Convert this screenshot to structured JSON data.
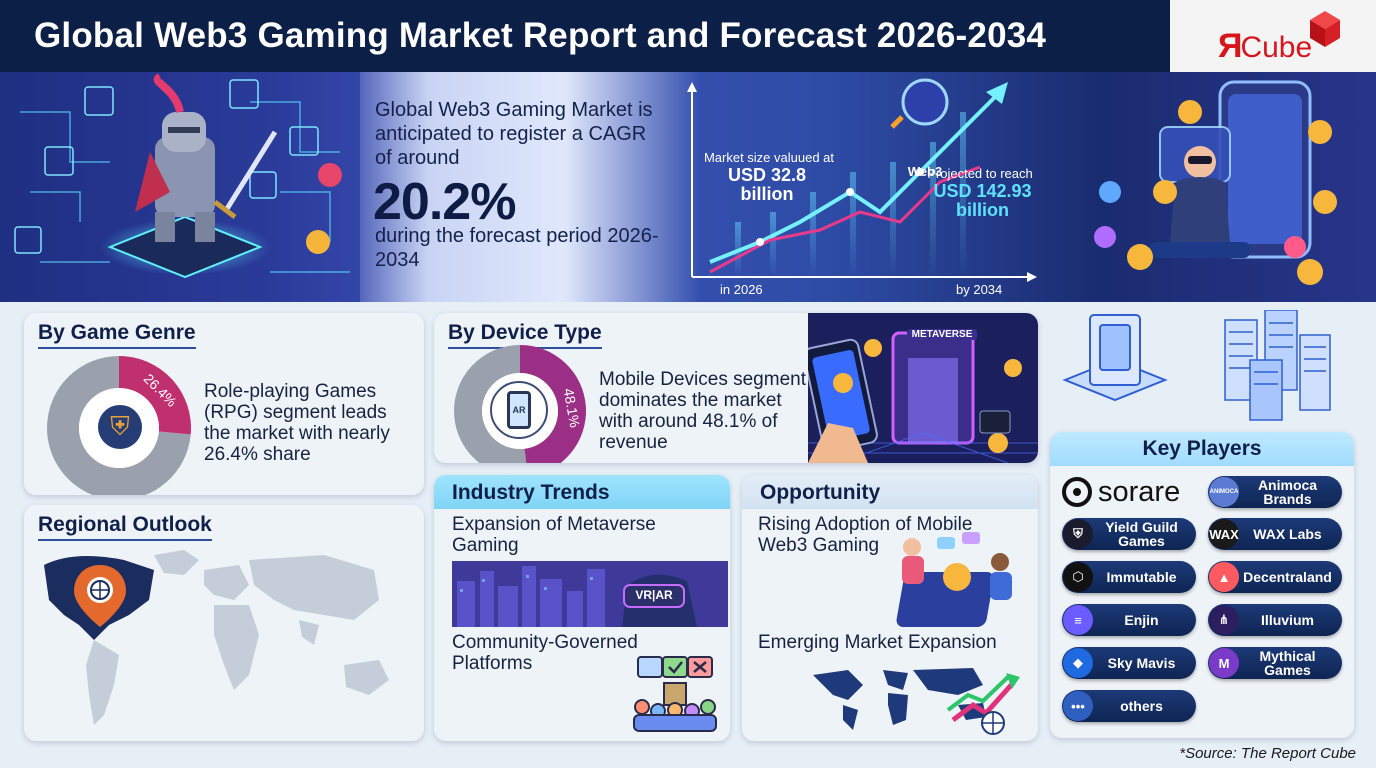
{
  "header": {
    "title": "Global Web3 Gaming Market Report and Forecast 2026-2034"
  },
  "logo": {
    "r": "Я",
    "text": "Cube"
  },
  "hero": {
    "intro": "Global Web3 Gaming Market is anticipated to register a CAGR of around",
    "cagr": "20.2%",
    "period": "during the forecast period 2026-2034",
    "badge": "Web3",
    "market_label": "Market size valuued at",
    "market_value": "USD 32.8 billion",
    "projected_label": "Projected to reach",
    "projected_value": "USD 142.93 billion",
    "x_start": "in 2026",
    "x_end": "by 2034"
  },
  "genre": {
    "title": "By Game Genre",
    "pct": "26.4%",
    "pct_value": 26.4,
    "text": "Role-playing Games (RPG) segment leads the market with nearly 26.4% share"
  },
  "device": {
    "title": "By Device Type",
    "pct": "48.1%",
    "pct_value": 48.1,
    "text": "Mobile Devices segment dominates the market with around 48.1% of revenue",
    "banner": "METAVERSE",
    "screen_label": "AR"
  },
  "regional": {
    "title": "Regional Outlook"
  },
  "trends": {
    "title": "Industry Trends",
    "item1": "Expansion of Metaverse Gaming",
    "vr_label": "VR|AR",
    "item2": "Community-Governed Platforms"
  },
  "opportunity": {
    "title": "Opportunity",
    "item1": "Rising Adoption of Mobile Web3 Gaming",
    "item2": "Emerging Market Expansion"
  },
  "key_players": {
    "title": "Key Players",
    "sorare": "sorare",
    "list": [
      {
        "name": "Animoca Brands",
        "color": "#5a7bd1",
        "icon": "animoca-logo-icon",
        "icon_text": "ANIMOCA"
      },
      {
        "name": "Yield Guild Games",
        "color": "#1b1b2e",
        "icon": "ygg-shield-icon",
        "icon_text": "⛨"
      },
      {
        "name": "WAX Labs",
        "color": "#1a1a1a",
        "icon": "wax-logo-icon",
        "icon_text": "WAX"
      },
      {
        "name": "Immutable",
        "color": "#111111",
        "icon": "immutable-logo-icon",
        "icon_text": "⬡"
      },
      {
        "name": "Decentraland",
        "color": "#ff5a5f",
        "icon": "decentraland-logo-icon",
        "icon_text": "▲"
      },
      {
        "name": "Enjin",
        "color": "#6a5cff",
        "icon": "enjin-logo-icon",
        "icon_text": "≡"
      },
      {
        "name": "Illuvium",
        "color": "#2b1f5f",
        "icon": "illuvium-logo-icon",
        "icon_text": "⋔"
      },
      {
        "name": "Sky Mavis",
        "color": "#1f6ae0",
        "icon": "skymavis-logo-icon",
        "icon_text": "◆"
      },
      {
        "name": "Mythical Games",
        "color": "#7a3cc8",
        "icon": "mythical-logo-icon",
        "icon_text": "M"
      },
      {
        "name": "others",
        "color": "#2f5fbf",
        "icon": "more-dots-icon",
        "icon_text": "•••"
      }
    ]
  },
  "source": "*Source: The Report Cube"
}
